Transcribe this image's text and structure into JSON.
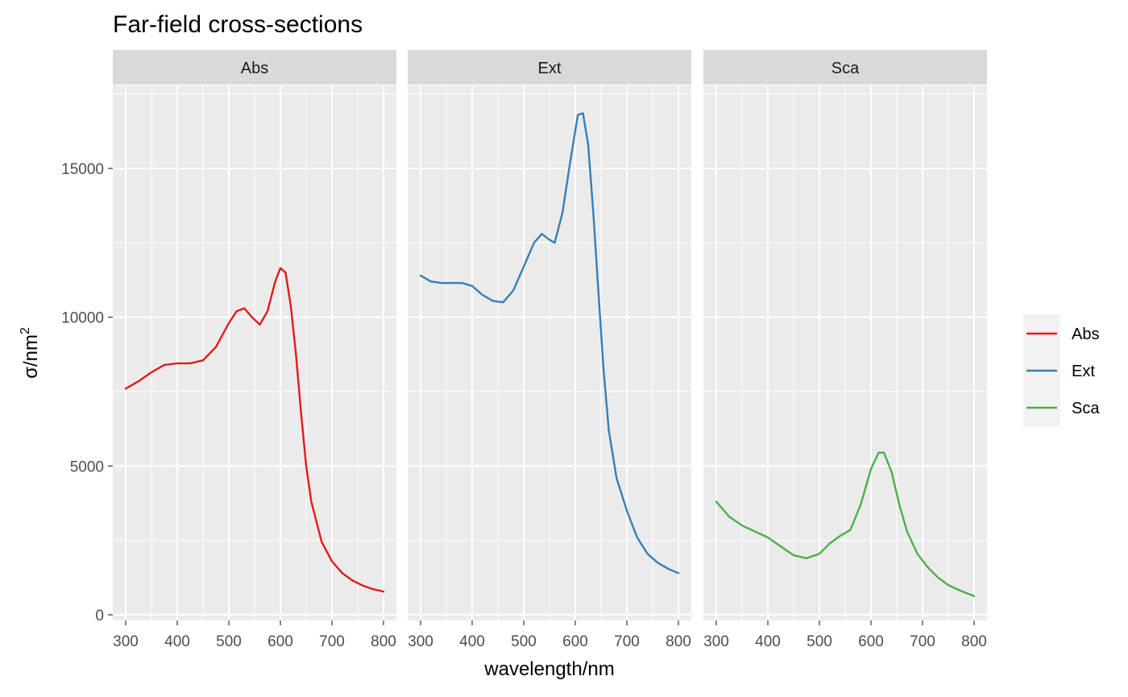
{
  "chart_data": {
    "type": "line",
    "title": "Far-field cross-sections",
    "xlabel": "wavelength/nm",
    "ylabel": "σ/nm",
    "ylabel_sup": "2",
    "xlim": [
      300,
      800
    ],
    "ylim": [
      0,
      17000
    ],
    "x_ticks": [
      "300",
      "400",
      "500",
      "600",
      "700",
      "800"
    ],
    "y_ticks": [
      "0",
      "5000",
      "10000",
      "15000"
    ],
    "grid": true,
    "legend_position": "right",
    "facets": [
      "Abs",
      "Ext",
      "Sca"
    ],
    "series": [
      {
        "name": "Abs",
        "color": "#e41a1c",
        "points": [
          [
            300,
            7600
          ],
          [
            325,
            7850
          ],
          [
            350,
            8150
          ],
          [
            375,
            8400
          ],
          [
            400,
            8450
          ],
          [
            425,
            8450
          ],
          [
            450,
            8550
          ],
          [
            475,
            9000
          ],
          [
            500,
            9800
          ],
          [
            515,
            10200
          ],
          [
            530,
            10300
          ],
          [
            545,
            10000
          ],
          [
            560,
            9750
          ],
          [
            575,
            10200
          ],
          [
            590,
            11200
          ],
          [
            600,
            11650
          ],
          [
            610,
            11500
          ],
          [
            620,
            10400
          ],
          [
            630,
            8800
          ],
          [
            640,
            6800
          ],
          [
            650,
            5000
          ],
          [
            660,
            3800
          ],
          [
            680,
            2450
          ],
          [
            700,
            1800
          ],
          [
            720,
            1400
          ],
          [
            740,
            1150
          ],
          [
            760,
            980
          ],
          [
            780,
            860
          ],
          [
            800,
            780
          ]
        ]
      },
      {
        "name": "Ext",
        "color": "#377eb8",
        "points": [
          [
            300,
            11400
          ],
          [
            320,
            11200
          ],
          [
            340,
            11150
          ],
          [
            360,
            11150
          ],
          [
            380,
            11150
          ],
          [
            400,
            11050
          ],
          [
            420,
            10750
          ],
          [
            440,
            10550
          ],
          [
            460,
            10500
          ],
          [
            480,
            10900
          ],
          [
            500,
            11700
          ],
          [
            520,
            12500
          ],
          [
            535,
            12800
          ],
          [
            550,
            12600
          ],
          [
            560,
            12500
          ],
          [
            575,
            13500
          ],
          [
            590,
            15200
          ],
          [
            605,
            16800
          ],
          [
            615,
            16850
          ],
          [
            625,
            15800
          ],
          [
            635,
            13500
          ],
          [
            645,
            10800
          ],
          [
            655,
            8200
          ],
          [
            665,
            6200
          ],
          [
            680,
            4600
          ],
          [
            700,
            3500
          ],
          [
            720,
            2600
          ],
          [
            740,
            2050
          ],
          [
            760,
            1750
          ],
          [
            780,
            1550
          ],
          [
            800,
            1400
          ]
        ]
      },
      {
        "name": "Sca",
        "color": "#4daf4a",
        "points": [
          [
            300,
            3800
          ],
          [
            325,
            3300
          ],
          [
            350,
            3000
          ],
          [
            375,
            2800
          ],
          [
            400,
            2600
          ],
          [
            425,
            2300
          ],
          [
            450,
            2000
          ],
          [
            475,
            1900
          ],
          [
            500,
            2050
          ],
          [
            520,
            2400
          ],
          [
            540,
            2650
          ],
          [
            560,
            2850
          ],
          [
            580,
            3700
          ],
          [
            600,
            4900
          ],
          [
            615,
            5450
          ],
          [
            625,
            5450
          ],
          [
            640,
            4800
          ],
          [
            655,
            3700
          ],
          [
            670,
            2800
          ],
          [
            690,
            2050
          ],
          [
            710,
            1600
          ],
          [
            730,
            1250
          ],
          [
            750,
            1000
          ],
          [
            775,
            800
          ],
          [
            800,
            630
          ]
        ]
      }
    ]
  }
}
